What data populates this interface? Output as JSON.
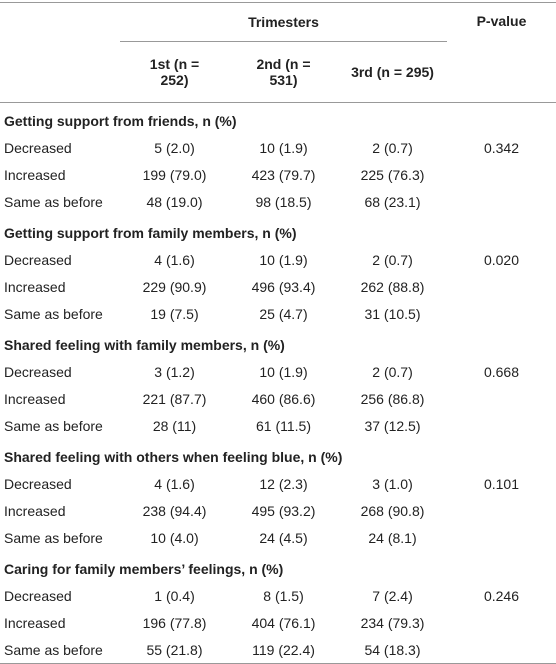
{
  "header": {
    "group": "Trimesters",
    "p_value": "P-value",
    "columns": [
      "1st (n = 252)",
      "2nd (n = 531)",
      "3rd (n = 295)"
    ]
  },
  "sections": [
    {
      "title": "Getting support from friends, n (%)",
      "p_value": "0.342",
      "rows": [
        [
          "Decreased",
          "5 (2.0)",
          "10 (1.9)",
          "2 (0.7)"
        ],
        [
          "Increased",
          "199 (79.0)",
          "423 (79.7)",
          "225 (76.3)"
        ],
        [
          "Same as before",
          "48 (19.0)",
          "98 (18.5)",
          "68 (23.1)"
        ]
      ]
    },
    {
      "title": "Getting support from family members, n (%)",
      "p_value": "0.020",
      "rows": [
        [
          "Decreased",
          "4 (1.6)",
          "10 (1.9)",
          "2 (0.7)"
        ],
        [
          "Increased",
          "229 (90.9)",
          "496 (93.4)",
          "262 (88.8)"
        ],
        [
          "Same as before",
          "19 (7.5)",
          "25 (4.7)",
          "31 (10.5)"
        ]
      ]
    },
    {
      "title": "Shared feeling with family members, n (%)",
      "p_value": "0.668",
      "rows": [
        [
          "Decreased",
          "3 (1.2)",
          "10 (1.9)",
          "2 (0.7)"
        ],
        [
          "Increased",
          "221 (87.7)",
          "460 (86.6)",
          "256 (86.8)"
        ],
        [
          "Same as before",
          "28 (11)",
          "61 (11.5)",
          "37 (12.5)"
        ]
      ]
    },
    {
      "title": "Shared feeling with others when feeling blue, n (%)",
      "p_value": "0.101",
      "rows": [
        [
          "Decreased",
          "4 (1.6)",
          "12 (2.3)",
          "3 (1.0)"
        ],
        [
          "Increased",
          "238 (94.4)",
          "495 (93.2)",
          "268 (90.8)"
        ],
        [
          "Same as before",
          "10 (4.0)",
          "24 (4.5)",
          "24 (8.1)"
        ]
      ]
    },
    {
      "title": "Caring for family members’ feelings, n (%)",
      "p_value": "0.246",
      "rows": [
        [
          "Decreased",
          "1 (0.4)",
          "8 (1.5)",
          "7 (2.4)"
        ],
        [
          "Increased",
          "196 (77.8)",
          "404 (76.1)",
          "234 (79.3)"
        ],
        [
          "Same as before",
          "55 (21.8)",
          "119 (22.4)",
          "54 (18.3)"
        ]
      ]
    }
  ]
}
